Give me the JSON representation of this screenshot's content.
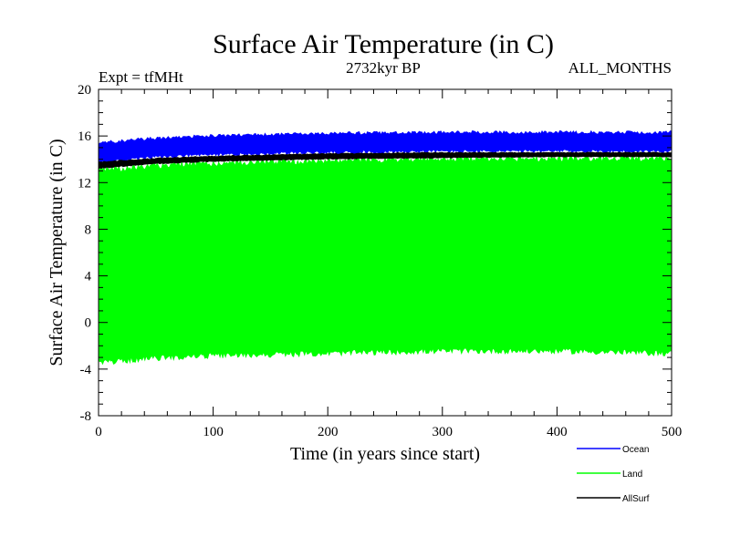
{
  "chart_data": {
    "type": "area",
    "title": "Surface Air Temperature (in C)",
    "subtitle_left": "Expt = tfMHt",
    "subtitle_center": "2732kyr BP",
    "subtitle_right": "ALL_MONTHS",
    "xlabel": "Time (in years since start)",
    "ylabel": "Surface Air Temperature (in C)",
    "xlim": [
      0,
      500
    ],
    "ylim": [
      -8,
      20
    ],
    "xticks": [
      0,
      100,
      200,
      300,
      400,
      500
    ],
    "yticks": [
      -8,
      -4,
      0,
      4,
      8,
      12,
      16,
      20
    ],
    "grid": false,
    "legend_position": "bottom-right",
    "series": [
      {
        "name": "Ocean",
        "color": "#0000ff",
        "band": {
          "x": [
            0,
            50,
            100,
            200,
            300,
            400,
            500
          ],
          "low": [
            13.6,
            14.1,
            14.3,
            14.5,
            14.6,
            14.6,
            14.6
          ],
          "high": [
            15.5,
            15.9,
            16.1,
            16.3,
            16.4,
            16.4,
            16.4
          ]
        }
      },
      {
        "name": "Land",
        "color": "#00ff00",
        "band": {
          "x": [
            0,
            50,
            100,
            200,
            300,
            400,
            500
          ],
          "low": [
            -3.6,
            -3.2,
            -3.0,
            -2.8,
            -2.6,
            -2.6,
            -2.8
          ],
          "high": [
            13.2,
            13.6,
            13.8,
            14.0,
            14.2,
            14.2,
            14.2
          ]
        }
      },
      {
        "name": "AllSurf",
        "color": "#000000",
        "band": {
          "x": [
            0,
            50,
            100,
            200,
            300,
            400,
            500
          ],
          "low": [
            13.2,
            13.6,
            13.8,
            14.0,
            14.1,
            14.2,
            14.2
          ],
          "high": [
            13.8,
            14.1,
            14.3,
            14.5,
            14.6,
            14.6,
            14.6
          ]
        }
      }
    ]
  }
}
